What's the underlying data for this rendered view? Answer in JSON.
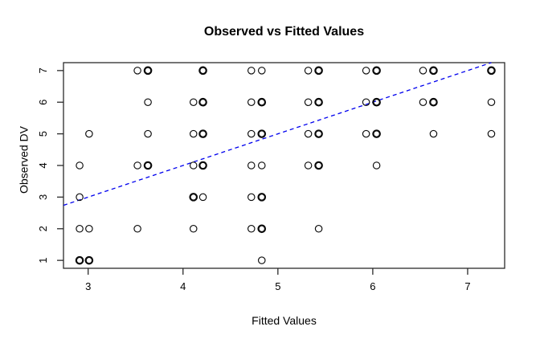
{
  "chart_data": {
    "type": "scatter",
    "title": "Observed vs Fitted Values",
    "xlabel": "Fitted Values",
    "ylabel": "Observed DV",
    "xlim": [
      2.74,
      7.39
    ],
    "ylim": [
      0.75,
      7.25
    ],
    "x_ticks": [
      3,
      4,
      5,
      6,
      7
    ],
    "y_ticks": [
      1,
      2,
      3,
      4,
      5,
      6,
      7
    ],
    "grid": false,
    "legend": "none",
    "marker": "open-circle",
    "marker_color": "#0a0a0a",
    "axis_color": "#2b2b2b",
    "reference_line": {
      "type": "identity",
      "slope": 1,
      "intercept": 0,
      "style": "dashed",
      "color": "#0000ee"
    },
    "points": [
      [
        3.52,
        7,
        0
      ],
      [
        3.63,
        7,
        1
      ],
      [
        4.21,
        7,
        1
      ],
      [
        4.72,
        7,
        0
      ],
      [
        4.83,
        7,
        0
      ],
      [
        5.32,
        7,
        0
      ],
      [
        5.43,
        7,
        1
      ],
      [
        5.93,
        7,
        0
      ],
      [
        6.04,
        7,
        1
      ],
      [
        6.53,
        7,
        0
      ],
      [
        6.64,
        7,
        1
      ],
      [
        7.25,
        7,
        1
      ],
      [
        3.63,
        6,
        0
      ],
      [
        4.11,
        6,
        0
      ],
      [
        4.21,
        6,
        1
      ],
      [
        4.72,
        6,
        0
      ],
      [
        4.83,
        6,
        1
      ],
      [
        5.32,
        6,
        0
      ],
      [
        5.43,
        6,
        1
      ],
      [
        5.93,
        6,
        0
      ],
      [
        6.04,
        6,
        1
      ],
      [
        6.53,
        6,
        0
      ],
      [
        6.64,
        6,
        1
      ],
      [
        7.25,
        6,
        0
      ],
      [
        3.01,
        5,
        0
      ],
      [
        3.63,
        5,
        0
      ],
      [
        4.11,
        5,
        0
      ],
      [
        4.21,
        5,
        1
      ],
      [
        4.72,
        5,
        0
      ],
      [
        4.83,
        5,
        1
      ],
      [
        5.32,
        5,
        0
      ],
      [
        5.43,
        5,
        1
      ],
      [
        5.93,
        5,
        0
      ],
      [
        6.04,
        5,
        1
      ],
      [
        6.64,
        5,
        0
      ],
      [
        7.25,
        5,
        0
      ],
      [
        2.91,
        4,
        0
      ],
      [
        3.52,
        4,
        0
      ],
      [
        3.63,
        4,
        1
      ],
      [
        4.11,
        4,
        0
      ],
      [
        4.21,
        4,
        1
      ],
      [
        4.72,
        4,
        0
      ],
      [
        4.83,
        4,
        0
      ],
      [
        5.32,
        4,
        0
      ],
      [
        5.43,
        4,
        1
      ],
      [
        6.04,
        4,
        0
      ],
      [
        2.91,
        3,
        0
      ],
      [
        4.11,
        3,
        1
      ],
      [
        4.21,
        3,
        0
      ],
      [
        4.72,
        3,
        0
      ],
      [
        4.83,
        3,
        1
      ],
      [
        2.91,
        2,
        0
      ],
      [
        3.01,
        2,
        0
      ],
      [
        3.52,
        2,
        0
      ],
      [
        4.11,
        2,
        0
      ],
      [
        4.72,
        2,
        0
      ],
      [
        4.83,
        2,
        1
      ],
      [
        5.43,
        2,
        0
      ],
      [
        2.91,
        1,
        1
      ],
      [
        3.01,
        1,
        1
      ],
      [
        4.83,
        1,
        0
      ]
    ]
  }
}
